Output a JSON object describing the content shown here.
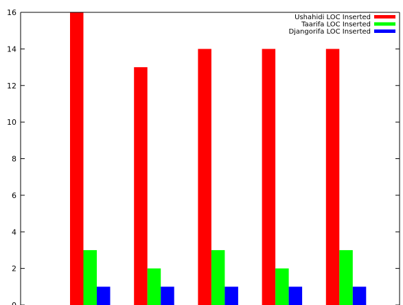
{
  "chart_data": {
    "type": "bar",
    "title": "",
    "xlabel": "",
    "ylabel": "",
    "categories": [
      "",
      "",
      "",
      "",
      ""
    ],
    "ylim": [
      0,
      16
    ],
    "yticks": [
      "0",
      "2",
      "4",
      "6",
      "8",
      "10",
      "12",
      "14",
      "16"
    ],
    "grid": false,
    "legend_position": "top-right",
    "series": [
      {
        "name": "Ushahidi LOC Inserted",
        "color": "#ff0000",
        "values": [
          16,
          13,
          14,
          14,
          14
        ]
      },
      {
        "name": "Taarifa LOC Inserted",
        "color": "#00ff00",
        "values": [
          3,
          2,
          3,
          2,
          3
        ]
      },
      {
        "name": "Djangorifa LOC Inserted",
        "color": "#0000ff",
        "values": [
          1,
          1,
          1,
          1,
          1
        ]
      }
    ]
  }
}
